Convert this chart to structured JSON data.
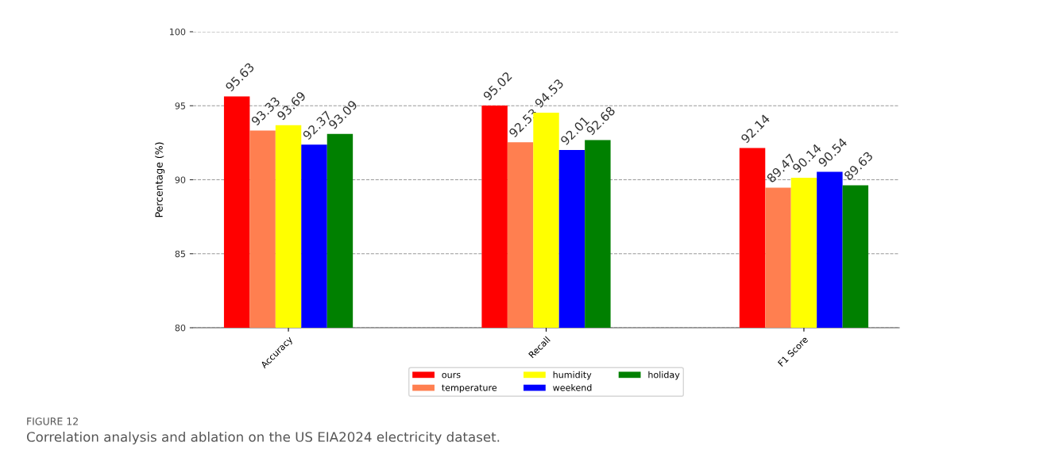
{
  "chart_data": {
    "type": "bar",
    "ylabel": "Percentage (%)",
    "categories": [
      "Accuracy",
      "Recall",
      "F1 Score"
    ],
    "series": [
      {
        "name": "ours",
        "color": "#ff0000",
        "values": [
          95.63,
          95.02,
          92.14
        ]
      },
      {
        "name": "temperature",
        "color": "#ff7f50",
        "values": [
          93.33,
          92.53,
          89.47
        ]
      },
      {
        "name": "humidity",
        "color": "#ffff00",
        "values": [
          93.69,
          94.53,
          90.14
        ]
      },
      {
        "name": "weekend",
        "color": "#0000ff",
        "values": [
          92.37,
          92.01,
          90.54
        ]
      },
      {
        "name": "holiday",
        "color": "#008000",
        "values": [
          93.09,
          92.68,
          89.63
        ]
      }
    ],
    "ylim": [
      80,
      100
    ],
    "yticks": [
      80,
      85,
      90,
      95,
      100
    ],
    "grid": "y",
    "legend": "bottom",
    "data_labels": true,
    "annotations": [
      "FIGURE 12",
      "Correlation analysis and ablation on the US EIA2024 electricity dataset."
    ]
  }
}
